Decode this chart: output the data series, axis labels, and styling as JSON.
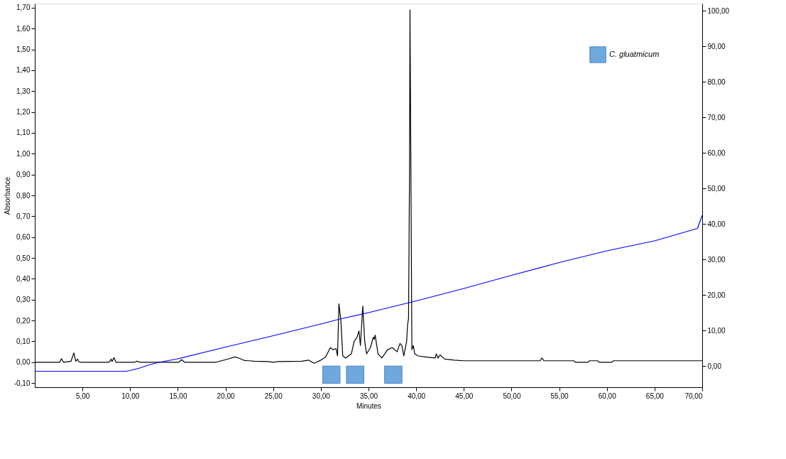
{
  "chart_data": {
    "type": "line",
    "xlabel": "Minutes",
    "ylabel": "Absorbance",
    "xlim": [
      0,
      70
    ],
    "ylim": [
      -0.12,
      1.72
    ],
    "y2lim": [
      -6,
      102
    ],
    "xticks": [
      {
        "value": 5,
        "label": "5,00"
      },
      {
        "value": 10,
        "label": "10,00"
      },
      {
        "value": 15,
        "label": "15,00"
      },
      {
        "value": 20,
        "label": "20,00"
      },
      {
        "value": 25,
        "label": "25,00"
      },
      {
        "value": 30,
        "label": "30,00"
      },
      {
        "value": 35,
        "label": "35,00"
      },
      {
        "value": 40,
        "label": "40,00"
      },
      {
        "value": 45,
        "label": "45,00"
      },
      {
        "value": 50,
        "label": "50,00"
      },
      {
        "value": 55,
        "label": "55,00"
      },
      {
        "value": 60,
        "label": "60,00"
      },
      {
        "value": 65,
        "label": "65,00"
      },
      {
        "value": 70,
        "label": "70,00"
      }
    ],
    "yticks": [
      {
        "value": -0.1,
        "label": "-0,10"
      },
      {
        "value": 0,
        "label": "0,00"
      },
      {
        "value": 0.1,
        "label": "0,10"
      },
      {
        "value": 0.2,
        "label": "0,20"
      },
      {
        "value": 0.3,
        "label": "0,30"
      },
      {
        "value": 0.4,
        "label": "0,40"
      },
      {
        "value": 0.5,
        "label": "0,50"
      },
      {
        "value": 0.6,
        "label": "0,60"
      },
      {
        "value": 0.7,
        "label": "0,70"
      },
      {
        "value": 0.8,
        "label": "0,80"
      },
      {
        "value": 0.9,
        "label": "0,90"
      },
      {
        "value": 1.0,
        "label": "1,00"
      },
      {
        "value": 1.1,
        "label": "1,10"
      },
      {
        "value": 1.2,
        "label": "1,20"
      },
      {
        "value": 1.3,
        "label": "1,30"
      },
      {
        "value": 1.4,
        "label": "1,40"
      },
      {
        "value": 1.5,
        "label": "1,50"
      },
      {
        "value": 1.6,
        "label": "1,60"
      },
      {
        "value": 1.7,
        "label": "1,70"
      }
    ],
    "y2ticks": [
      {
        "value": 0,
        "label": "0,00"
      },
      {
        "value": 10,
        "label": "10,00"
      },
      {
        "value": 20,
        "label": "20,00"
      },
      {
        "value": 30,
        "label": "30,00"
      },
      {
        "value": 40,
        "label": "40,00"
      },
      {
        "value": 50,
        "label": "50,00"
      },
      {
        "value": 60,
        "label": "60,00"
      },
      {
        "value": 70,
        "label": "70,00"
      },
      {
        "value": 80,
        "label": "80,00"
      },
      {
        "value": 90,
        "label": "90,00"
      },
      {
        "value": 100,
        "label": "100,00"
      }
    ],
    "grid": false,
    "legend": "top right",
    "line_style": "solid",
    "marker": "none",
    "series": [
      {
        "color": "#000000",
        "x": [
          0,
          2.6,
          2.8,
          3.0,
          3.8,
          4.1,
          4.3,
          4.5,
          4.6,
          4.8,
          7.8,
          8.0,
          8.1,
          8.3,
          8.5,
          10.5,
          10.7,
          11.0,
          15.1,
          15.4,
          15.7,
          19.0,
          20.0,
          21.0,
          21.5,
          22.0,
          22.5,
          23.0,
          24.5,
          25.0,
          25.5,
          28.0,
          28.7,
          29.3,
          30.0,
          30.5,
          31.0,
          31.3,
          31.6,
          31.75,
          31.9,
          32.1,
          32.3,
          32.6,
          33.2,
          33.5,
          33.8,
          34.0,
          34.15,
          34.4,
          34.6,
          34.8,
          35.2,
          35.5,
          35.6,
          35.7,
          36.0,
          36.4,
          37.0,
          37.5,
          38.0,
          38.3,
          38.5,
          38.7,
          39.0,
          39.1,
          39.2,
          39.3,
          39.35,
          39.45,
          39.55,
          39.7,
          39.85,
          40.2,
          41.0,
          42.0,
          42.1,
          42.3,
          42.5,
          43.0,
          44.0,
          45.0,
          48.0,
          50.0,
          53.0,
          53.2,
          53.4,
          56.5,
          56.7,
          58.0,
          58.2,
          59.0,
          59.2,
          60.5,
          60.7,
          70.0
        ],
        "values": [
          0,
          0,
          0.017,
          0,
          0.005,
          0.045,
          0.005,
          0.015,
          0.003,
          0,
          0,
          0.015,
          0.003,
          0.022,
          0,
          0,
          0.005,
          0,
          0,
          0.012,
          0,
          0,
          0.012,
          0.025,
          0.018,
          0.008,
          0.007,
          0.005,
          0.003,
          0,
          0.003,
          0.005,
          0.01,
          -0.005,
          0.01,
          0.025,
          0.07,
          0.06,
          0.065,
          0.03,
          0.28,
          0.2,
          0.03,
          0.02,
          0.04,
          0.1,
          0.12,
          0.15,
          0.08,
          0.27,
          0.1,
          0.04,
          0.07,
          0.12,
          0.11,
          0.13,
          0.04,
          0.02,
          0.06,
          0.07,
          0.05,
          0.09,
          0.08,
          0.03,
          0.1,
          0.18,
          0.21,
          0.9,
          1.69,
          0.9,
          0.06,
          0.08,
          0.04,
          0.03,
          0.025,
          0.02,
          0.04,
          0.02,
          0.035,
          0.015,
          0.01,
          0.007,
          0.007,
          0.007,
          0.007,
          0.02,
          0.007,
          0.007,
          0.0,
          0.0,
          0.007,
          0.007,
          0.0,
          0.0,
          0.007,
          0.007
        ]
      },
      {
        "type": "scatter",
        "name": "C. gluatmicum",
        "color": "#6fa8dc",
        "marker": "square",
        "x": [
          31.1,
          33.6,
          37.6
        ],
        "values": [
          -0.06,
          -0.06,
          -0.06
        ]
      },
      {
        "axis": "y2",
        "color": "#0000ff",
        "x": [
          0,
          9.5,
          10.0,
          11.0,
          12.0,
          13.0,
          15.0,
          20.0,
          25.0,
          30.0,
          32.0,
          35.0,
          40.0,
          45.0,
          50.0,
          55.0,
          60.0,
          65.0,
          69.5,
          70.0
        ],
        "values": [
          -1.5,
          -1.5,
          -1.3,
          -0.6,
          0.3,
          1.0,
          2.0,
          5.3,
          8.5,
          11.8,
          13.2,
          15.0,
          18.3,
          21.8,
          25.5,
          29.1,
          32.4,
          35.2,
          38.7,
          42.4
        ]
      }
    ]
  }
}
